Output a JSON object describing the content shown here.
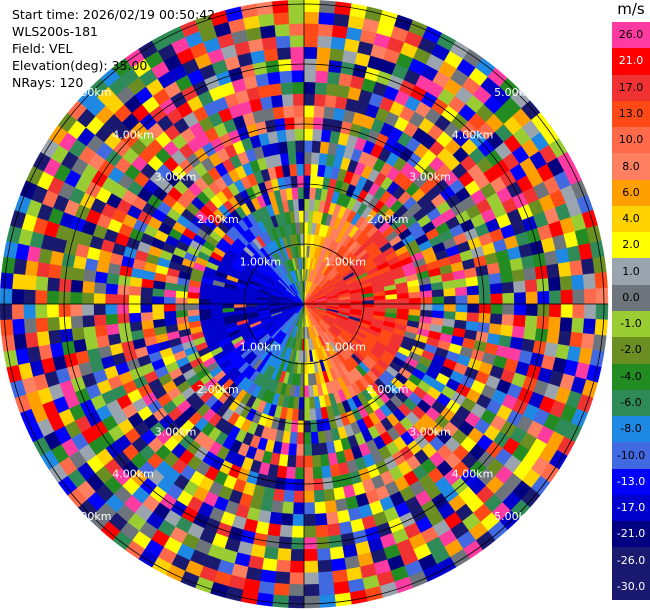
{
  "header": {
    "start_time": "Start time: 2026/02/19 00:50:42",
    "instrument": "WLS200s-181",
    "field": "Field: VEL",
    "elevation": "Elevation(deg): 35.00",
    "nrays": "NRays: 120"
  },
  "colorbar": {
    "unit": "m/s",
    "levels": [
      {
        "label": "26.0",
        "color": "#ff3aa0"
      },
      {
        "label": "21.0",
        "color": "#ff0000"
      },
      {
        "label": "17.0",
        "color": "#f03232"
      },
      {
        "label": "13.0",
        "color": "#ff4a18"
      },
      {
        "label": "10.0",
        "color": "#ff6b4a"
      },
      {
        "label": "8.0",
        "color": "#ff8060"
      },
      {
        "label": "6.0",
        "color": "#ffa000"
      },
      {
        "label": "4.0",
        "color": "#ffd200"
      },
      {
        "label": "2.0",
        "color": "#ffff00"
      },
      {
        "label": "1.0",
        "color": "#9aa4ae"
      },
      {
        "label": "0.0",
        "color": "#6d747c"
      },
      {
        "label": "-1.0",
        "color": "#9acd32"
      },
      {
        "label": "-2.0",
        "color": "#6b8e23"
      },
      {
        "label": "-4.0",
        "color": "#228b22"
      },
      {
        "label": "-6.0",
        "color": "#2e8b57"
      },
      {
        "label": "-8.0",
        "color": "#1e88e5"
      },
      {
        "label": "-10.0",
        "color": "#4169e1"
      },
      {
        "label": "-13.0",
        "color": "#0000ff"
      },
      {
        "label": "-17.0",
        "color": "#0000cd"
      },
      {
        "label": "-21.0",
        "color": "#000080"
      },
      {
        "label": "-26.0",
        "color": "#191970"
      },
      {
        "label": "-30.0",
        "color": "#191970"
      }
    ]
  },
  "chart_data": {
    "type": "heatmap",
    "projection": "polar-ppi",
    "nrays": 120,
    "range_rings": [
      "1.00km",
      "2.00km",
      "3.00km",
      "4.00km",
      "5.00km"
    ],
    "field": "VEL",
    "units": "m/s",
    "vmin": -30.0,
    "vmax": 26.0
  }
}
